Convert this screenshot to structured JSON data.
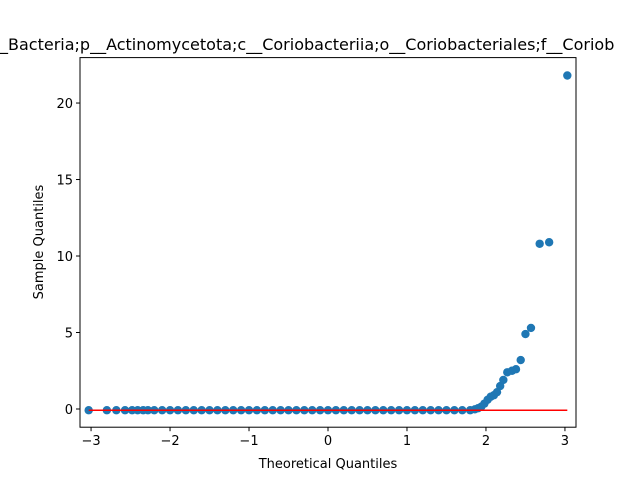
{
  "chart_data": {
    "type": "scatter",
    "title": "_Bacteria;p__Actinomycetota;c__Coriobacteriia;o__Coriobacteriales;f__Coriob",
    "xlabel": "Theoretical Quantiles",
    "ylabel": "Sample Quantiles",
    "xlim": [
      -3.14,
      3.14
    ],
    "ylim": [
      -1.19,
      22.97
    ],
    "xticks": [
      {
        "value": -3,
        "label": "−3"
      },
      {
        "value": -2,
        "label": "−2"
      },
      {
        "value": -1,
        "label": "−1"
      },
      0,
      1,
      2,
      3
    ],
    "yticks": [
      0,
      5,
      10,
      15,
      20
    ],
    "series": [
      {
        "color": "#1f77b4",
        "x": [
          -3.03,
          -2.8,
          -2.68,
          -2.57,
          -2.48,
          -2.41,
          -2.34,
          -2.28,
          -2.2,
          -2.1,
          -2.0,
          -1.9,
          -1.8,
          -1.7,
          -1.6,
          -1.5,
          -1.4,
          -1.3,
          -1.2,
          -1.1,
          -1.0,
          -0.9,
          -0.8,
          -0.7,
          -0.6,
          -0.5,
          -0.4,
          -0.3,
          -0.2,
          -0.1,
          0.0,
          0.1,
          0.2,
          0.3,
          0.4,
          0.5,
          0.6,
          0.7,
          0.8,
          0.9,
          1.0,
          1.1,
          1.2,
          1.3,
          1.4,
          1.5,
          1.6,
          1.7,
          1.8,
          1.86,
          1.9,
          1.94,
          1.98,
          2.02,
          2.06,
          2.1,
          2.14,
          2.18,
          2.22,
          2.27,
          2.33,
          2.38,
          2.44,
          2.5,
          2.57,
          2.68,
          2.8,
          3.03
        ],
        "values": [
          -0.08,
          -0.08,
          -0.08,
          -0.08,
          -0.08,
          -0.08,
          -0.08,
          -0.08,
          -0.08,
          -0.08,
          -0.08,
          -0.08,
          -0.08,
          -0.08,
          -0.08,
          -0.08,
          -0.08,
          -0.08,
          -0.08,
          -0.08,
          -0.08,
          -0.08,
          -0.08,
          -0.08,
          -0.08,
          -0.08,
          -0.08,
          -0.08,
          -0.08,
          -0.08,
          -0.08,
          -0.08,
          -0.08,
          -0.08,
          -0.08,
          -0.08,
          -0.08,
          -0.08,
          -0.08,
          -0.08,
          -0.08,
          -0.08,
          -0.08,
          -0.08,
          -0.08,
          -0.08,
          -0.08,
          -0.08,
          -0.08,
          -0.02,
          0.05,
          0.15,
          0.35,
          0.6,
          0.8,
          0.9,
          1.1,
          1.5,
          1.9,
          2.4,
          2.5,
          2.6,
          3.2,
          4.9,
          5.3,
          10.8,
          10.9,
          21.8
        ]
      }
    ],
    "reference_line": {
      "x": [
        -3.03,
        3.03
      ],
      "values": [
        -0.08,
        -0.08
      ],
      "color": "#ff0000"
    }
  }
}
